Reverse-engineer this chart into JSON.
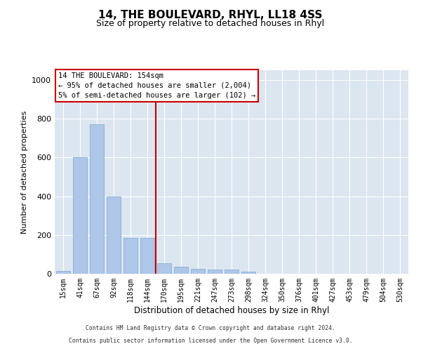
{
  "title": "14, THE BOULEVARD, RHYL, LL18 4SS",
  "subtitle": "Size of property relative to detached houses in Rhyl",
  "xlabel": "Distribution of detached houses by size in Rhyl",
  "ylabel": "Number of detached properties",
  "bar_labels": [
    "15sqm",
    "41sqm",
    "67sqm",
    "92sqm",
    "118sqm",
    "144sqm",
    "170sqm",
    "195sqm",
    "221sqm",
    "247sqm",
    "273sqm",
    "298sqm",
    "324sqm",
    "350sqm",
    "376sqm",
    "401sqm",
    "427sqm",
    "453sqm",
    "479sqm",
    "504sqm",
    "530sqm"
  ],
  "bar_values": [
    15,
    600,
    770,
    400,
    185,
    185,
    55,
    35,
    25,
    20,
    20,
    10,
    0,
    0,
    0,
    0,
    0,
    0,
    0,
    0,
    0
  ],
  "bar_color": "#aec6e8",
  "bar_edge_color": "#7ba7d0",
  "property_line_x": 5.5,
  "annotation_text_line1": "14 THE BOULEVARD: 154sqm",
  "annotation_text_line2": "← 95% of detached houses are smaller (2,004)",
  "annotation_text_line3": "5% of semi-detached houses are larger (102) →",
  "vline_color": "#cc0000",
  "ylim": [
    0,
    1050
  ],
  "yticks": [
    0,
    200,
    400,
    600,
    800,
    1000
  ],
  "background_color": "#dce6f0",
  "footer_line1": "Contains HM Land Registry data © Crown copyright and database right 2024.",
  "footer_line2": "Contains public sector information licensed under the Open Government Licence v3.0."
}
